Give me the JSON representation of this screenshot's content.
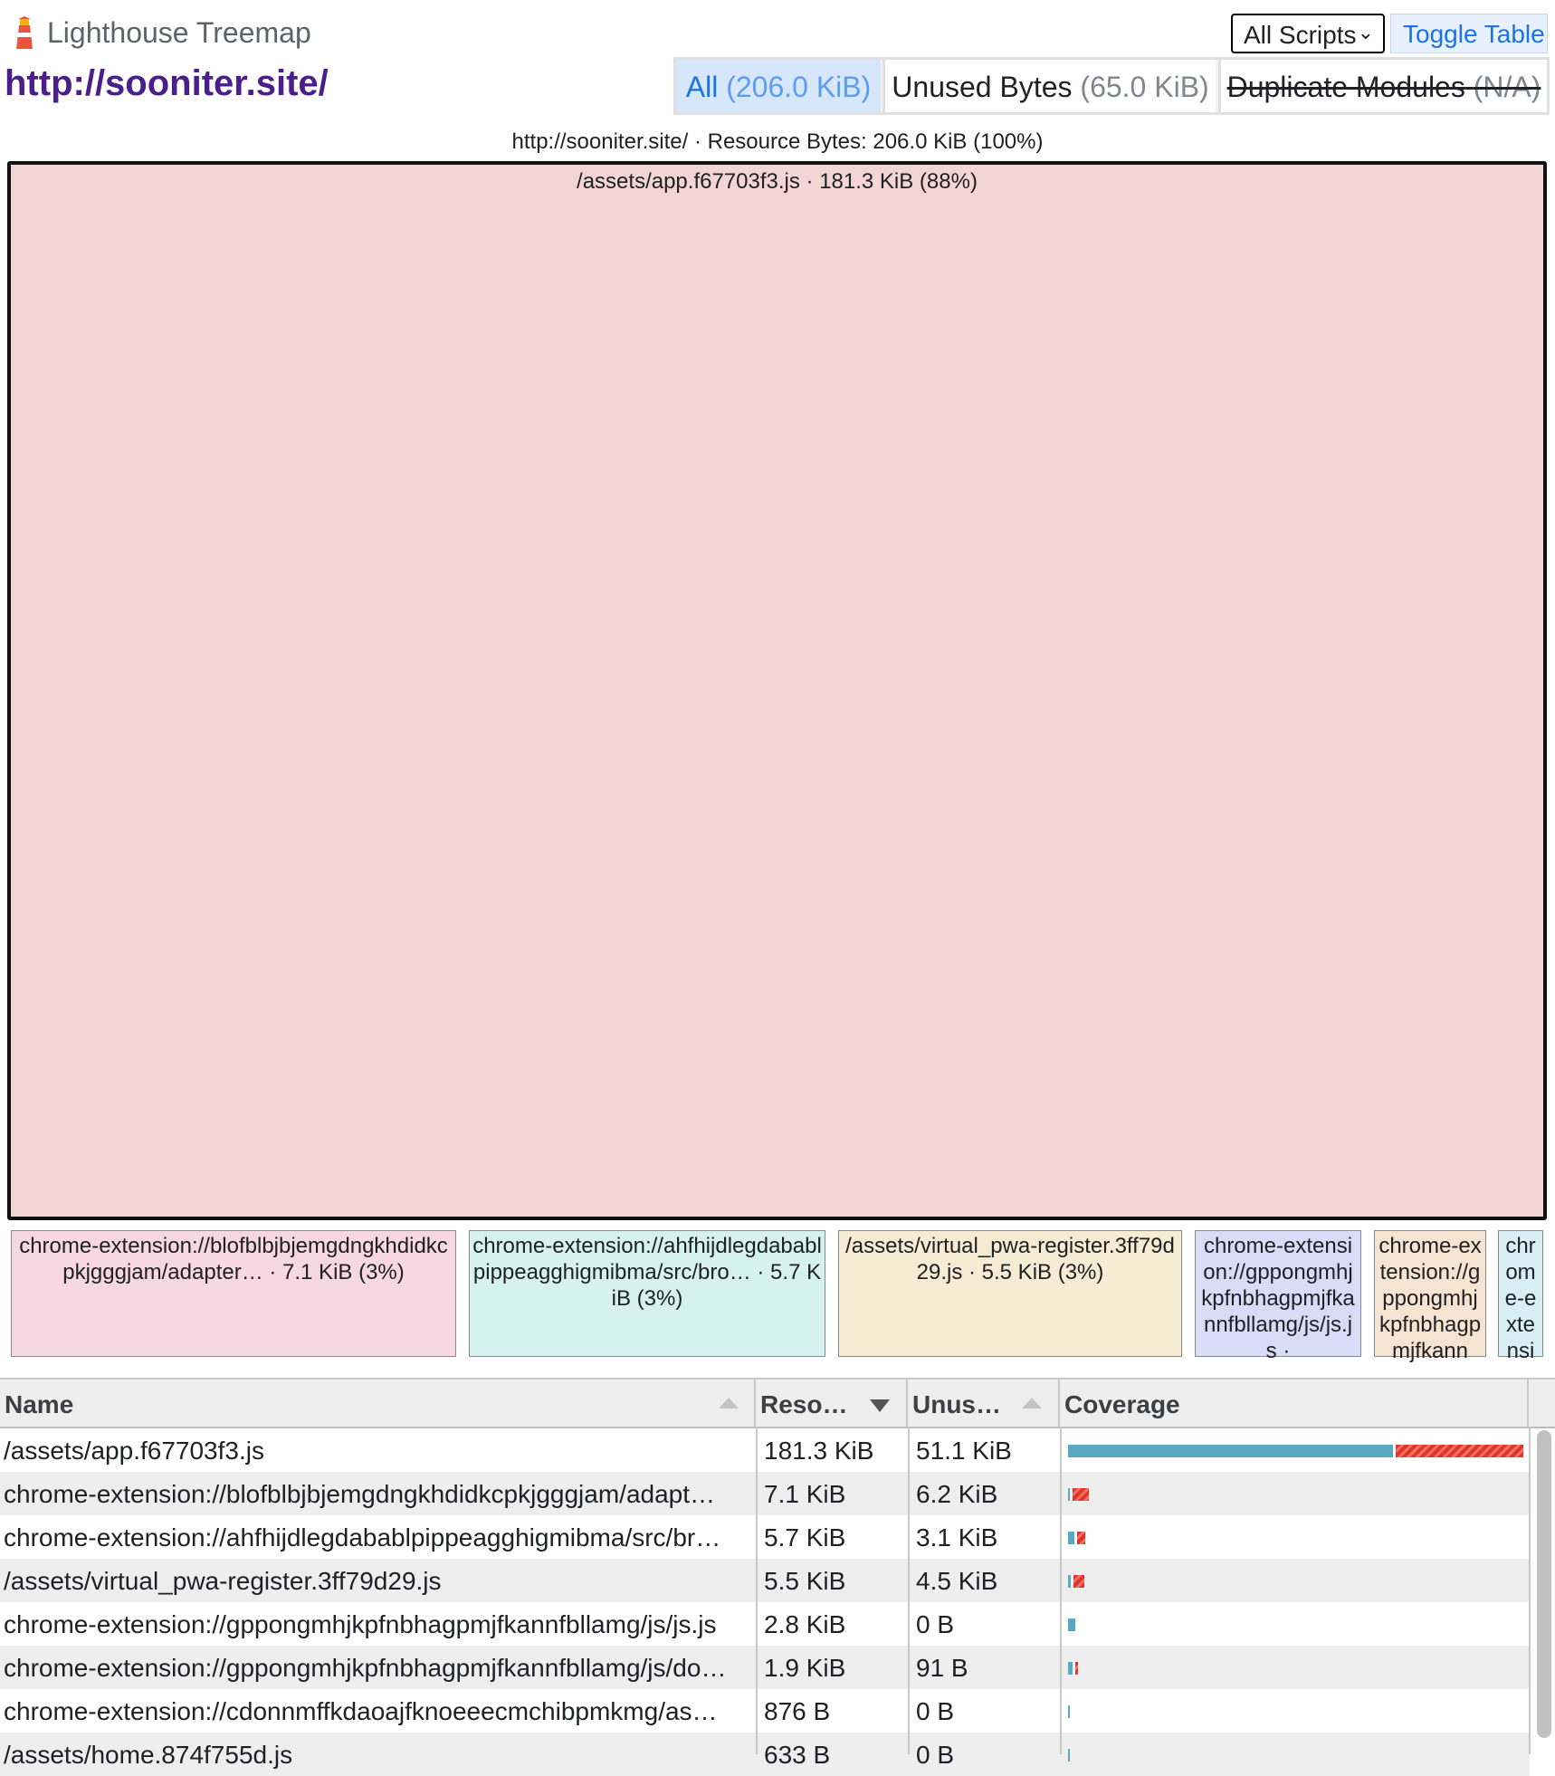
{
  "header": {
    "app_title": "Lighthouse Treemap",
    "url": "http://sooniter.site/",
    "scripts_select": "All Scripts",
    "toggle_table": "Toggle Table",
    "modes": [
      {
        "label": "All",
        "size": "(206.0 KiB)",
        "active": true
      },
      {
        "label": "Unused Bytes",
        "size": "(65.0 KiB)",
        "active": false
      },
      {
        "label": "Duplicate Modules",
        "size": "(N/A)",
        "disabled": true
      }
    ]
  },
  "treemap": {
    "caption": "http://sooniter.site/ · Resource Bytes: 206.0 KiB (100%)",
    "tiles": {
      "app": "/assets/app.f67703f3.js · 181.3 KiB (88%)",
      "adapter": "chrome-extension://blofblbjbjemgdngkhdidkcpkjgggjam/adapter… · 7.1 KiB (3%)",
      "ahf": "chrome-extension://ahfhijdlegdabablpippeagghigmibma/src/bro… · 5.7 KiB (3%)",
      "pwa": "/assets/virtual_pwa-register.3ff79d29.js · 5.5 KiB (3%)",
      "gpp1": "chrome-extension://gppongmhjkpfnbhagpmjfkannfbllamg/js/js.js ·",
      "gpp2": "chrome-extension://gppongmhjkpfnbhagpmjfkann",
      "cdo": "chrome-extensi"
    },
    "colors": {
      "app": "#f4d5d5",
      "adapter": "#f7d7e1",
      "ahf": "#d5f2f0",
      "pwa": "#f6ecd4",
      "gpp1": "#d8dcf7",
      "gpp2": "#f6e4d2",
      "cdo": "#d8eff6"
    }
  },
  "table": {
    "columns": [
      "Name",
      "Reso…",
      "Unus…",
      "Coverage"
    ],
    "rows": [
      {
        "name": "/assets/app.f67703f3.js",
        "resource": "181.3 KiB",
        "unused": "51.1 KiB",
        "res_kib": 181.3,
        "unused_kib": 51.1
      },
      {
        "name": "chrome-extension://blofblbjbjemgdngkhdidkcpkjgggjam/adapt…",
        "resource": "7.1 KiB",
        "unused": "6.2 KiB",
        "res_kib": 7.1,
        "unused_kib": 6.2
      },
      {
        "name": "chrome-extension://ahfhijdlegdabablpippeagghigmibma/src/br…",
        "resource": "5.7 KiB",
        "unused": "3.1 KiB",
        "res_kib": 5.7,
        "unused_kib": 3.1
      },
      {
        "name": "/assets/virtual_pwa-register.3ff79d29.js",
        "resource": "5.5 KiB",
        "unused": "4.5 KiB",
        "res_kib": 5.5,
        "unused_kib": 4.5
      },
      {
        "name": "chrome-extension://gppongmhjkpfnbhagpmjfkannfbllamg/js/js.js",
        "resource": "2.8 KiB",
        "unused": "0 B",
        "res_kib": 2.8,
        "unused_kib": 0
      },
      {
        "name": "chrome-extension://gppongmhjkpfnbhagpmjfkannfbllamg/js/do…",
        "resource": "1.9 KiB",
        "unused": "91 B",
        "res_kib": 1.9,
        "unused_kib": 0.09
      },
      {
        "name": "chrome-extension://cdonnmffkdaoajfknoeeecmchibpmkmg/as…",
        "resource": "876 B",
        "unused": "0 B",
        "res_kib": 0.86,
        "unused_kib": 0
      },
      {
        "name": "/assets/home.874f755d.js",
        "resource": "633 B",
        "unused": "0 B",
        "res_kib": 0.62,
        "unused_kib": 0
      }
    ]
  }
}
